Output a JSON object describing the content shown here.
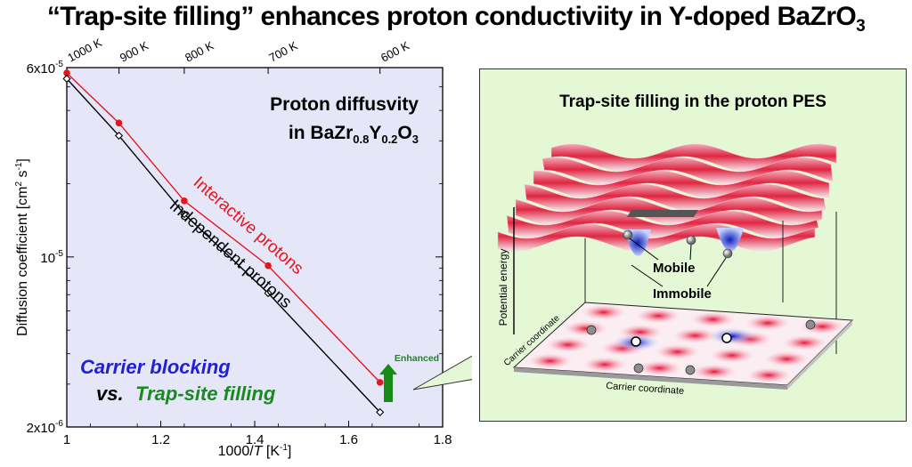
{
  "headline": {
    "before": "“Trap-site filling” enhances proton conductiviity in Y-doped BaZrO",
    "subscript": "3"
  },
  "chart_data": {
    "type": "scatter",
    "xlabel_prefix": "1000/",
    "xlabel_var": "T",
    "xlabel_unit": " [K",
    "xlabel_exp": "-1",
    "xlabel_close": "]",
    "ylabel_text": "Diffusion coefficient [cm",
    "ylabel_sup1": "2",
    "ylabel_mid": " s",
    "ylabel_sup2": "-1",
    "ylabel_close": "]",
    "x_range": [
      1.0,
      1.8
    ],
    "y_range": [
      2e-06,
      6e-05
    ],
    "y_scale": "log",
    "x_ticks": [
      {
        "value": 1.0,
        "label": "1"
      },
      {
        "value": 1.2,
        "label": "1.2"
      },
      {
        "value": 1.4,
        "label": "1.4"
      },
      {
        "value": 1.6,
        "label": "1.6"
      },
      {
        "value": 1.8,
        "label": "1.8"
      }
    ],
    "y_ticks": [
      {
        "value": 6e-05,
        "mantissa": "6x10",
        "exp": "-5"
      },
      {
        "value": 1e-05,
        "mantissa": "10",
        "exp": "-5"
      },
      {
        "value": 2e-06,
        "mantissa": "2x10",
        "exp": "-6"
      }
    ],
    "top_ticks": [
      {
        "temp": 1000,
        "label": "1000 K"
      },
      {
        "temp": 900,
        "label": "900 K"
      },
      {
        "temp": 800,
        "label": "800 K"
      },
      {
        "temp": 700,
        "label": "700 K"
      },
      {
        "temp": 600,
        "label": "600 K"
      }
    ],
    "series": [
      {
        "name": "Interactive protons",
        "color": "#e8141b",
        "marker": "filled-circle",
        "x": [
          1.0,
          1.111,
          1.25,
          1.4286,
          1.6667
        ],
        "y": [
          5.7e-05,
          3.55e-05,
          1.7e-05,
          9.2e-06,
          3.05e-06
        ]
      },
      {
        "name": "Independent protons",
        "color": "#000000",
        "marker": "open-diamond",
        "x": [
          1.0,
          1.111,
          1.25,
          1.4286,
          1.6667
        ],
        "y": [
          5.4e-05,
          3.15e-05,
          1.5e-05,
          7.1e-06,
          2.3e-06
        ]
      }
    ],
    "annotation_title_line1": "Proton diffusvity",
    "annotation_title_line2_a": "in BaZr",
    "annotation_title_line2_sub1": "0.8",
    "annotation_title_line2_b": "Y",
    "annotation_title_line2_sub2": "0.2",
    "annotation_title_line2_c": "O",
    "annotation_title_line2_sub3": "3",
    "enhanced_label": "Enhanced",
    "blocking_label": "Carrier blocking",
    "vs_label": "vs.",
    "filling_label": "Trap-site filling",
    "colors": {
      "plot_bg": "#e6e6f9",
      "blue_text": "#1f1fd6",
      "green_text": "#1a8a20",
      "arrow_green": "#178a1a"
    },
    "grid": false
  },
  "pes": {
    "title": "Trap-site filling in the proton PES",
    "mobile_label": "Mobile",
    "immobile_label": "Immobile",
    "potential_axis": "Potential energy",
    "carrier_axis_left": "Carrier coordinate",
    "carrier_axis_bottom": "Carrier coordinate",
    "colors": {
      "panel_bg": "#e5f8d6",
      "peak": "#e01b3a",
      "well": "#1a2fd0"
    }
  }
}
